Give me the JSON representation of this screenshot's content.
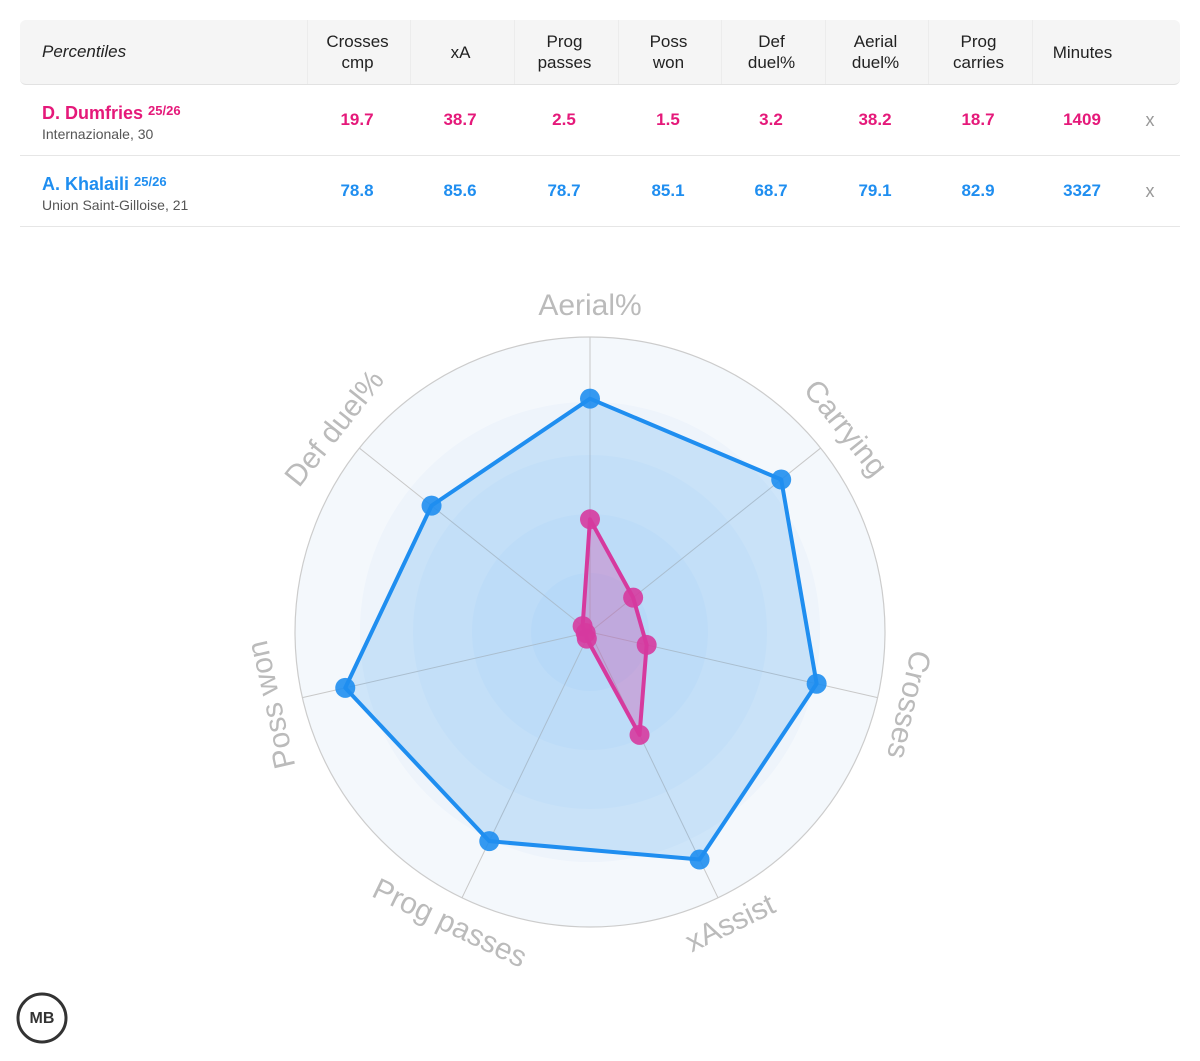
{
  "table": {
    "header": [
      "Percentiles",
      "Crosses cmp",
      "xA",
      "Prog passes",
      "Poss won",
      "Def duel%",
      "Aerial duel%",
      "Prog carries",
      "Minutes"
    ],
    "rows": [
      {
        "name": "D. Dumfries",
        "season": "25/26",
        "club": "Internazionale, 30",
        "color": "#e5197a",
        "values": [
          19.7,
          38.7,
          2.5,
          1.5,
          3.2,
          38.2,
          18.7,
          1409
        ],
        "remove": "x"
      },
      {
        "name": "A. Khalaili",
        "season": "25/26",
        "club": "Union Saint-Gilloise, 21",
        "color": "#1f8ef0",
        "values": [
          78.8,
          85.6,
          78.7,
          85.1,
          68.7,
          79.1,
          82.9,
          3327
        ],
        "remove": "x"
      }
    ]
  },
  "radar": {
    "axes": [
      "Aerial%",
      "Carrying",
      "Crosses",
      "xAssist",
      "Prog passes",
      "Poss won",
      "Def duel%"
    ],
    "rlim": [
      0,
      100
    ],
    "series_colors": [
      "#d63a9e",
      "#1f8ef0"
    ]
  },
  "logo": "MB"
}
